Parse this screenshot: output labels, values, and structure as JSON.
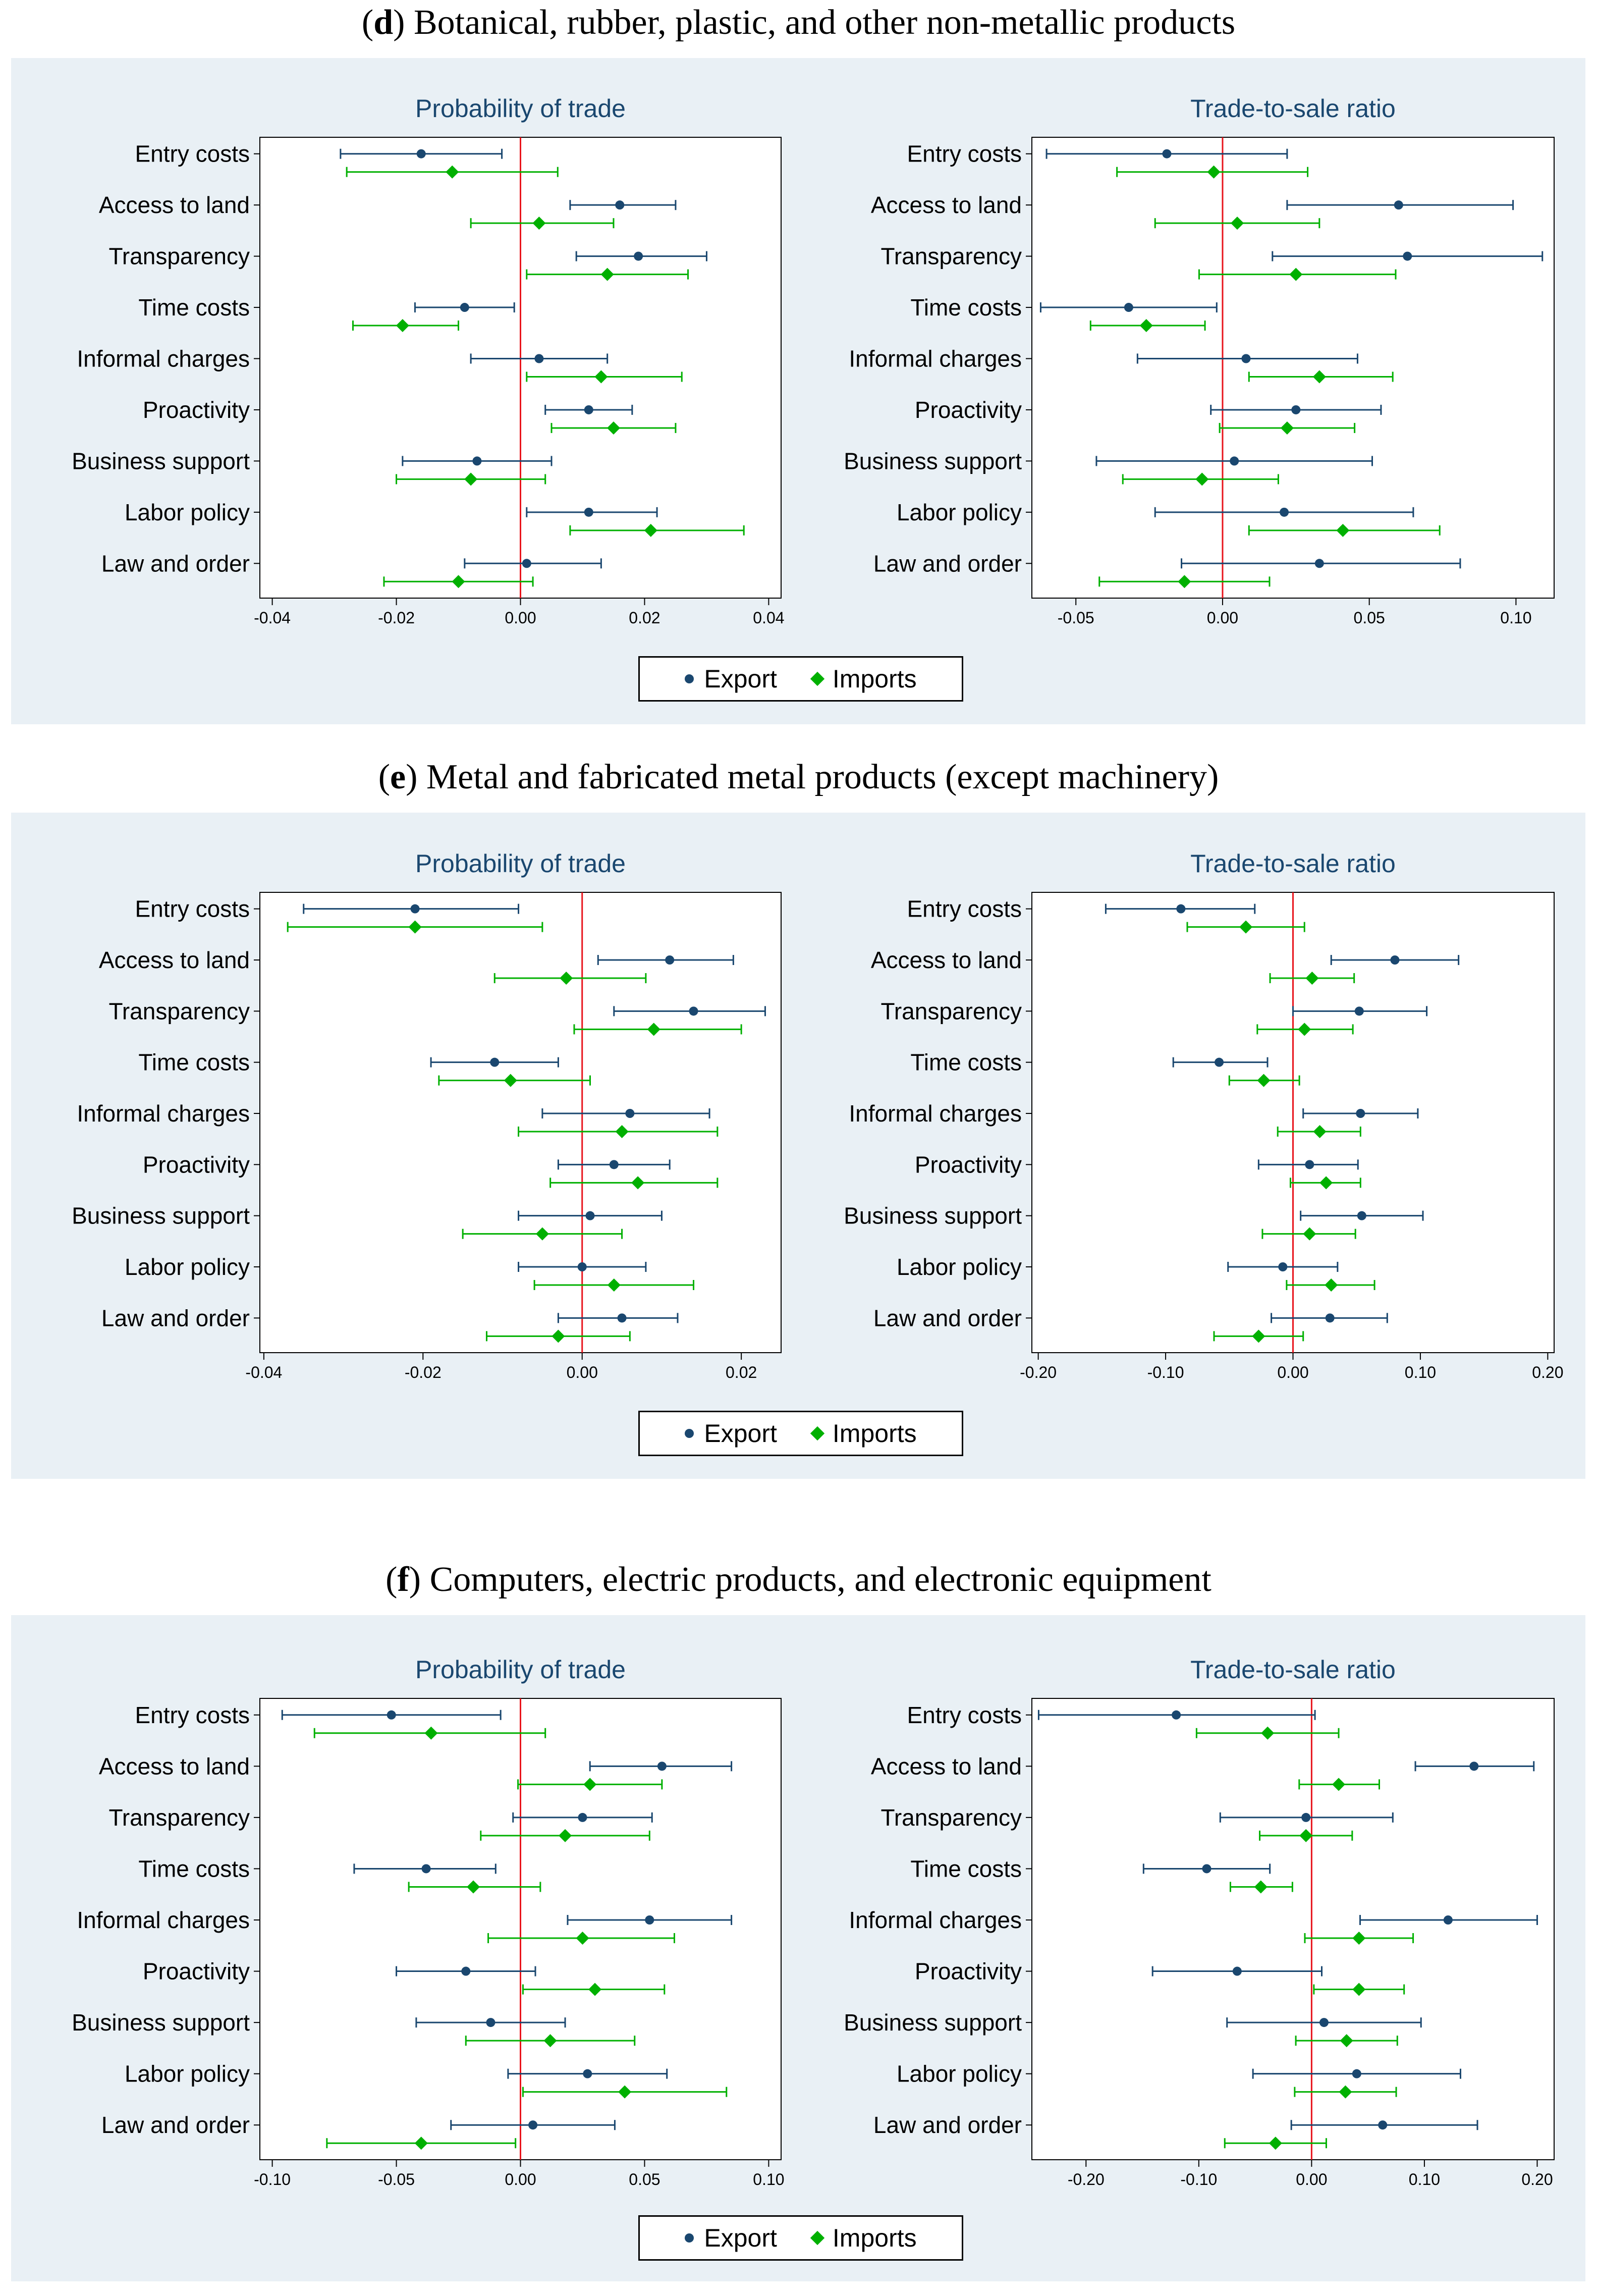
{
  "colors": {
    "export": "#1a476f",
    "imports": "#00b000",
    "zero_line": "#e8141c",
    "panel_bg": "#e9f0f5",
    "plot_bg": "#ffffff",
    "title": "#1a476f"
  },
  "legend": {
    "export": "Export",
    "imports": "Imports"
  },
  "sections": [
    {
      "letter": "d",
      "title": " Botanical, rubber, plastic, and other non-metallic products"
    },
    {
      "letter": "e",
      "title": " Metal and fabricated metal products (except machinery)"
    },
    {
      "letter": "f",
      "title": " Computers, electric products, and electronic equipment"
    }
  ],
  "chart_data": [
    {
      "section": "d",
      "type": "coefficient-plot",
      "title": "Probability of trade",
      "categories": [
        "Entry costs",
        "Access to land",
        "Transparency",
        "Time costs",
        "Informal charges",
        "Proactivity",
        "Business support",
        "Labor policy",
        "Law and order"
      ],
      "xlim": [
        -0.042,
        0.042
      ],
      "xticks": [
        -0.04,
        -0.02,
        0.0,
        0.02,
        0.04
      ],
      "xtick_labels": [
        "-0.04",
        "-0.02",
        "0.00",
        "0.02",
        "0.04"
      ],
      "series": [
        {
          "name": "Export",
          "values": [
            {
              "est": -0.016,
              "lo": -0.029,
              "hi": -0.003
            },
            {
              "est": 0.016,
              "lo": 0.008,
              "hi": 0.025
            },
            {
              "est": 0.019,
              "lo": 0.009,
              "hi": 0.03
            },
            {
              "est": -0.009,
              "lo": -0.017,
              "hi": -0.001
            },
            {
              "est": 0.003,
              "lo": -0.008,
              "hi": 0.014
            },
            {
              "est": 0.011,
              "lo": 0.004,
              "hi": 0.018
            },
            {
              "est": -0.007,
              "lo": -0.019,
              "hi": 0.005
            },
            {
              "est": 0.011,
              "lo": 0.001,
              "hi": 0.022
            },
            {
              "est": 0.001,
              "lo": -0.009,
              "hi": 0.013
            }
          ]
        },
        {
          "name": "Imports",
          "values": [
            {
              "est": -0.011,
              "lo": -0.028,
              "hi": 0.006
            },
            {
              "est": 0.003,
              "lo": -0.008,
              "hi": 0.015
            },
            {
              "est": 0.014,
              "lo": 0.001,
              "hi": 0.027
            },
            {
              "est": -0.019,
              "lo": -0.027,
              "hi": -0.01
            },
            {
              "est": 0.013,
              "lo": 0.001,
              "hi": 0.026
            },
            {
              "est": 0.015,
              "lo": 0.005,
              "hi": 0.025
            },
            {
              "est": -0.008,
              "lo": -0.02,
              "hi": 0.004
            },
            {
              "est": 0.021,
              "lo": 0.008,
              "hi": 0.036
            },
            {
              "est": -0.01,
              "lo": -0.022,
              "hi": 0.002
            }
          ]
        }
      ]
    },
    {
      "section": "d",
      "type": "coefficient-plot",
      "title": "Trade-to-sale ratio",
      "categories": [
        "Entry costs",
        "Access to land",
        "Transparency",
        "Time costs",
        "Informal charges",
        "Proactivity",
        "Business support",
        "Labor policy",
        "Law and order"
      ],
      "xlim": [
        -0.065,
        0.113
      ],
      "xticks": [
        -0.05,
        0.0,
        0.05,
        0.1
      ],
      "xtick_labels": [
        "-0.05",
        "0.00",
        "0.05",
        "0.10"
      ],
      "series": [
        {
          "name": "Export",
          "values": [
            {
              "est": -0.019,
              "lo": -0.06,
              "hi": 0.022
            },
            {
              "est": 0.06,
              "lo": 0.022,
              "hi": 0.099
            },
            {
              "est": 0.063,
              "lo": 0.017,
              "hi": 0.109
            },
            {
              "est": -0.032,
              "lo": -0.062,
              "hi": -0.002
            },
            {
              "est": 0.008,
              "lo": -0.029,
              "hi": 0.046
            },
            {
              "est": 0.025,
              "lo": -0.004,
              "hi": 0.054
            },
            {
              "est": 0.004,
              "lo": -0.043,
              "hi": 0.051
            },
            {
              "est": 0.021,
              "lo": -0.023,
              "hi": 0.065
            },
            {
              "est": 0.033,
              "lo": -0.014,
              "hi": 0.081
            }
          ]
        },
        {
          "name": "Imports",
          "values": [
            {
              "est": -0.003,
              "lo": -0.036,
              "hi": 0.029
            },
            {
              "est": 0.005,
              "lo": -0.023,
              "hi": 0.033
            },
            {
              "est": 0.025,
              "lo": -0.008,
              "hi": 0.059
            },
            {
              "est": -0.026,
              "lo": -0.045,
              "hi": -0.006
            },
            {
              "est": 0.033,
              "lo": 0.009,
              "hi": 0.058
            },
            {
              "est": 0.022,
              "lo": -0.001,
              "hi": 0.045
            },
            {
              "est": -0.007,
              "lo": -0.034,
              "hi": 0.019
            },
            {
              "est": 0.041,
              "lo": 0.009,
              "hi": 0.074
            },
            {
              "est": -0.013,
              "lo": -0.042,
              "hi": 0.016
            }
          ]
        }
      ]
    },
    {
      "section": "e",
      "type": "coefficient-plot",
      "title": "Probability of trade",
      "categories": [
        "Entry costs",
        "Access to land",
        "Transparency",
        "Time costs",
        "Informal charges",
        "Proactivity",
        "Business support",
        "Labor policy",
        "Law and order"
      ],
      "xlim": [
        -0.0405,
        0.025
      ],
      "xticks": [
        -0.04,
        -0.02,
        0.0,
        0.02
      ],
      "xtick_labels": [
        "-0.04",
        "-0.02",
        "0.00",
        "0.02"
      ],
      "series": [
        {
          "name": "Export",
          "values": [
            {
              "est": -0.021,
              "lo": -0.035,
              "hi": -0.008
            },
            {
              "est": 0.011,
              "lo": 0.002,
              "hi": 0.019
            },
            {
              "est": 0.014,
              "lo": 0.004,
              "hi": 0.023
            },
            {
              "est": -0.011,
              "lo": -0.019,
              "hi": -0.003
            },
            {
              "est": 0.006,
              "lo": -0.005,
              "hi": 0.016
            },
            {
              "est": 0.004,
              "lo": -0.003,
              "hi": 0.011
            },
            {
              "est": 0.001,
              "lo": -0.008,
              "hi": 0.01
            },
            {
              "est": 0.0,
              "lo": -0.008,
              "hi": 0.008
            },
            {
              "est": 0.005,
              "lo": -0.003,
              "hi": 0.012
            }
          ]
        },
        {
          "name": "Imports",
          "values": [
            {
              "est": -0.021,
              "lo": -0.037,
              "hi": -0.005
            },
            {
              "est": -0.002,
              "lo": -0.011,
              "hi": 0.008
            },
            {
              "est": 0.009,
              "lo": -0.001,
              "hi": 0.02
            },
            {
              "est": -0.009,
              "lo": -0.018,
              "hi": 0.001
            },
            {
              "est": 0.005,
              "lo": -0.008,
              "hi": 0.017
            },
            {
              "est": 0.007,
              "lo": -0.004,
              "hi": 0.017
            },
            {
              "est": -0.005,
              "lo": -0.015,
              "hi": 0.005
            },
            {
              "est": 0.004,
              "lo": -0.006,
              "hi": 0.014
            },
            {
              "est": -0.003,
              "lo": -0.012,
              "hi": 0.006
            }
          ]
        }
      ]
    },
    {
      "section": "e",
      "type": "coefficient-plot",
      "title": "Trade-to-sale ratio",
      "categories": [
        "Entry costs",
        "Access to land",
        "Transparency",
        "Time costs",
        "Informal charges",
        "Proactivity",
        "Business support",
        "Labor policy",
        "Law and order"
      ],
      "xlim": [
        -0.205,
        0.205
      ],
      "xticks": [
        -0.2,
        -0.1,
        0.0,
        0.1,
        0.2
      ],
      "xtick_labels": [
        "-0.20",
        "-0.10",
        "0.00",
        "0.10",
        "0.20"
      ],
      "series": [
        {
          "name": "Export",
          "values": [
            {
              "est": -0.088,
              "lo": -0.147,
              "hi": -0.03
            },
            {
              "est": 0.08,
              "lo": 0.03,
              "hi": 0.13
            },
            {
              "est": 0.052,
              "lo": 0.0,
              "hi": 0.105
            },
            {
              "est": -0.058,
              "lo": -0.094,
              "hi": -0.02
            },
            {
              "est": 0.053,
              "lo": 0.008,
              "hi": 0.098
            },
            {
              "est": 0.013,
              "lo": -0.027,
              "hi": 0.051
            },
            {
              "est": 0.054,
              "lo": 0.006,
              "hi": 0.102
            },
            {
              "est": -0.008,
              "lo": -0.051,
              "hi": 0.035
            },
            {
              "est": 0.029,
              "lo": -0.017,
              "hi": 0.074
            }
          ]
        },
        {
          "name": "Imports",
          "values": [
            {
              "est": -0.037,
              "lo": -0.083,
              "hi": 0.009
            },
            {
              "est": 0.015,
              "lo": -0.018,
              "hi": 0.048
            },
            {
              "est": 0.009,
              "lo": -0.028,
              "hi": 0.047
            },
            {
              "est": -0.023,
              "lo": -0.05,
              "hi": 0.005
            },
            {
              "est": 0.021,
              "lo": -0.012,
              "hi": 0.053
            },
            {
              "est": 0.026,
              "lo": -0.002,
              "hi": 0.053
            },
            {
              "est": 0.013,
              "lo": -0.024,
              "hi": 0.049
            },
            {
              "est": 0.03,
              "lo": -0.005,
              "hi": 0.064
            },
            {
              "est": -0.027,
              "lo": -0.062,
              "hi": 0.008
            }
          ]
        }
      ]
    },
    {
      "section": "f",
      "type": "coefficient-plot",
      "title": "Probability of trade",
      "categories": [
        "Entry costs",
        "Access to land",
        "Transparency",
        "Time costs",
        "Informal charges",
        "Proactivity",
        "Business support",
        "Labor policy",
        "Law and order"
      ],
      "xlim": [
        -0.105,
        0.105
      ],
      "xticks": [
        -0.1,
        -0.05,
        0.0,
        0.05,
        0.1
      ],
      "xtick_labels": [
        "-0.10",
        "-0.05",
        "0.00",
        "0.05",
        "0.10"
      ],
      "series": [
        {
          "name": "Export",
          "values": [
            {
              "est": -0.052,
              "lo": -0.096,
              "hi": -0.008
            },
            {
              "est": 0.057,
              "lo": 0.028,
              "hi": 0.085
            },
            {
              "est": 0.025,
              "lo": -0.003,
              "hi": 0.053
            },
            {
              "est": -0.038,
              "lo": -0.067,
              "hi": -0.01
            },
            {
              "est": 0.052,
              "lo": 0.019,
              "hi": 0.085
            },
            {
              "est": -0.022,
              "lo": -0.05,
              "hi": 0.006
            },
            {
              "est": -0.012,
              "lo": -0.042,
              "hi": 0.018
            },
            {
              "est": 0.027,
              "lo": -0.005,
              "hi": 0.059
            },
            {
              "est": 0.005,
              "lo": -0.028,
              "hi": 0.038
            }
          ]
        },
        {
          "name": "Imports",
          "values": [
            {
              "est": -0.036,
              "lo": -0.083,
              "hi": 0.01
            },
            {
              "est": 0.028,
              "lo": -0.001,
              "hi": 0.057
            },
            {
              "est": 0.018,
              "lo": -0.016,
              "hi": 0.052
            },
            {
              "est": -0.019,
              "lo": -0.045,
              "hi": 0.008
            },
            {
              "est": 0.025,
              "lo": -0.013,
              "hi": 0.062
            },
            {
              "est": 0.03,
              "lo": 0.001,
              "hi": 0.058
            },
            {
              "est": 0.012,
              "lo": -0.022,
              "hi": 0.046
            },
            {
              "est": 0.042,
              "lo": 0.001,
              "hi": 0.083
            },
            {
              "est": -0.04,
              "lo": -0.078,
              "hi": -0.002
            }
          ]
        }
      ]
    },
    {
      "section": "f",
      "type": "coefficient-plot",
      "title": "Trade-to-sale ratio",
      "categories": [
        "Entry costs",
        "Access to land",
        "Transparency",
        "Time costs",
        "Informal charges",
        "Proactivity",
        "Business support",
        "Labor policy",
        "Law and order"
      ],
      "xlim": [
        -0.248,
        0.215
      ],
      "xticks": [
        -0.2,
        -0.1,
        0.0,
        0.1,
        0.2
      ],
      "xtick_labels": [
        "-0.20",
        "-0.10",
        "0.00",
        "0.10",
        "0.20"
      ],
      "series": [
        {
          "name": "Export",
          "values": [
            {
              "est": -0.12,
              "lo": -0.242,
              "hi": 0.003
            },
            {
              "est": 0.144,
              "lo": 0.092,
              "hi": 0.197
            },
            {
              "est": -0.005,
              "lo": -0.081,
              "hi": 0.072
            },
            {
              "est": -0.093,
              "lo": -0.149,
              "hi": -0.037
            },
            {
              "est": 0.121,
              "lo": 0.043,
              "hi": 0.2
            },
            {
              "est": -0.066,
              "lo": -0.141,
              "hi": 0.009
            },
            {
              "est": 0.011,
              "lo": -0.075,
              "hi": 0.097
            },
            {
              "est": 0.04,
              "lo": -0.052,
              "hi": 0.132
            },
            {
              "est": 0.063,
              "lo": -0.018,
              "hi": 0.147
            }
          ]
        },
        {
          "name": "Imports",
          "values": [
            {
              "est": -0.039,
              "lo": -0.102,
              "hi": 0.024
            },
            {
              "est": 0.024,
              "lo": -0.011,
              "hi": 0.06
            },
            {
              "est": -0.005,
              "lo": -0.046,
              "hi": 0.036
            },
            {
              "est": -0.045,
              "lo": -0.072,
              "hi": -0.017
            },
            {
              "est": 0.042,
              "lo": -0.006,
              "hi": 0.09
            },
            {
              "est": 0.042,
              "lo": 0.002,
              "hi": 0.082
            },
            {
              "est": 0.031,
              "lo": -0.014,
              "hi": 0.076
            },
            {
              "est": 0.03,
              "lo": -0.015,
              "hi": 0.075
            },
            {
              "est": -0.032,
              "lo": -0.077,
              "hi": 0.013
            }
          ]
        }
      ]
    }
  ]
}
